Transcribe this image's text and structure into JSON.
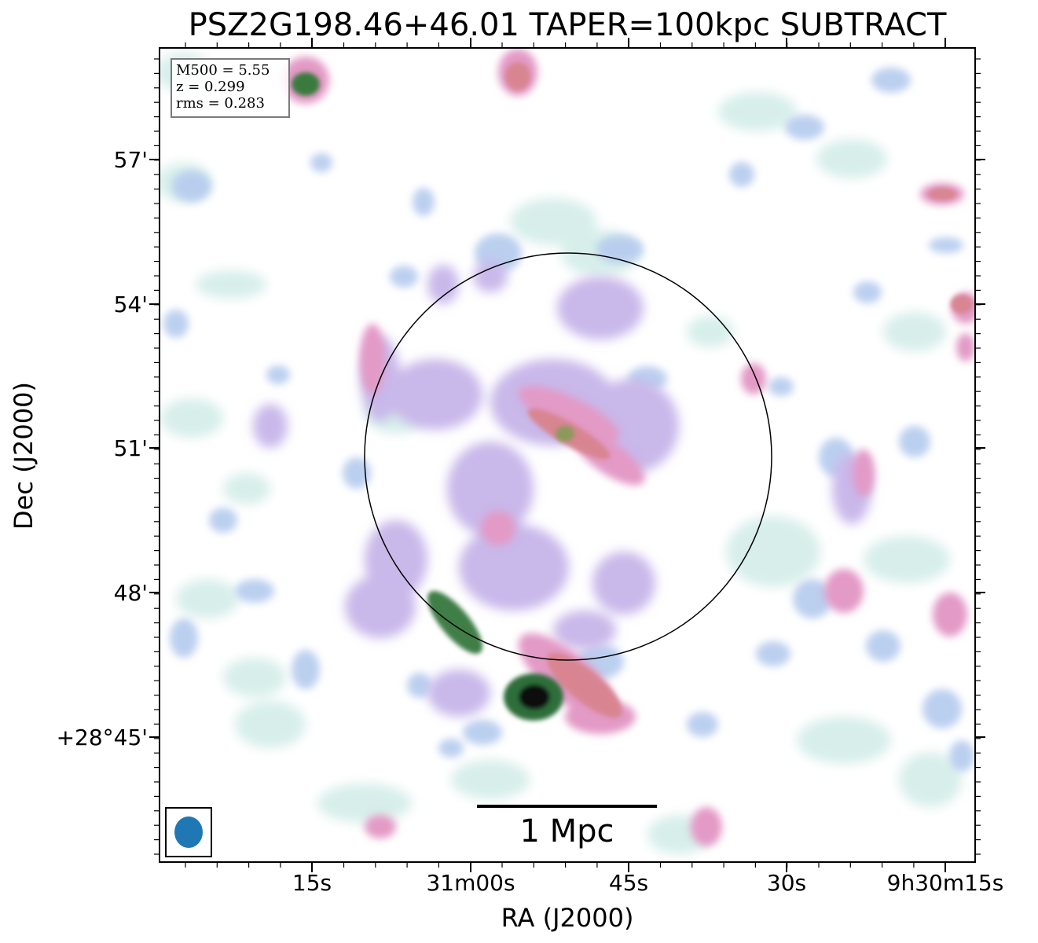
{
  "title": "PSZ2G198.46+46.01 TAPER=100kpc SUBTRACT",
  "info_box": {
    "mass": "M500 = 5.55",
    "redshift": "z = 0.299",
    "rms": "rms = 0.283"
  },
  "scalebar_label": "1 Mpc",
  "axes": {
    "xlabel": "RA (J2000)",
    "ylabel": "Dec (J2000)",
    "x_ticks": [
      "15s",
      "31m00s",
      "45s",
      "30s",
      "9h30m15s"
    ],
    "y_ticks": [
      "57'",
      "54'",
      "51'",
      "48'",
      "+28°45'"
    ]
  },
  "colors": {
    "beam": "#1f77b4",
    "colormap": [
      "#ffffff",
      "#d3ede8",
      "#b8cdef",
      "#cdb3e9",
      "#e599c6",
      "#d98090",
      "#3a7a3c",
      "#000000"
    ]
  },
  "beam_icon": "ellipse-icon"
}
